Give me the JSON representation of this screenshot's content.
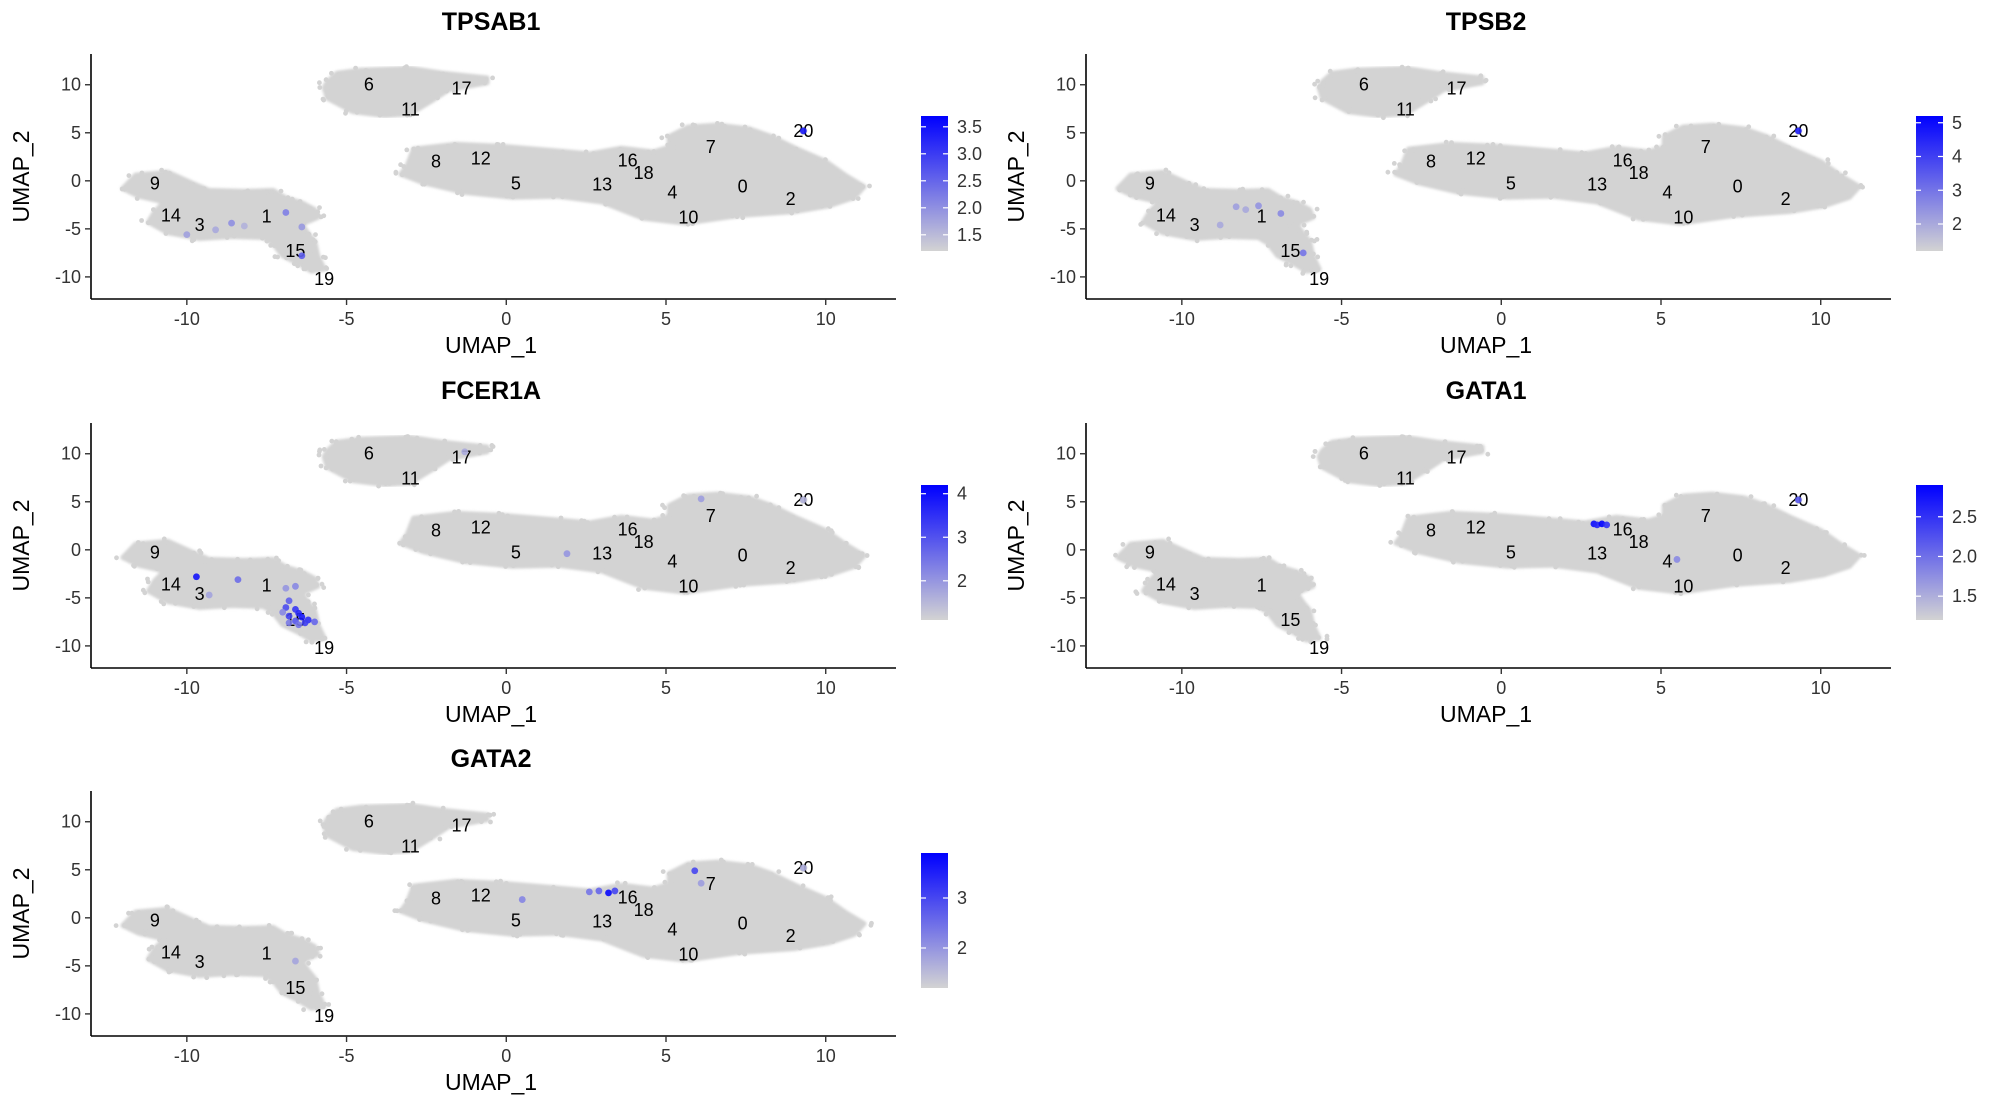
{
  "figure": {
    "background": "#ffffff",
    "point_color": "#d3d3d3",
    "low_color": "#d3d3d3",
    "high_color": "#0000ff"
  },
  "chart_data": [
    {
      "type": "scatter",
      "title": "TPSAB1",
      "xlabel": "UMAP_1",
      "ylabel": "UMAP_2",
      "xlim": [
        -13,
        12.2
      ],
      "ylim": [
        -12.3,
        13.2
      ],
      "xticks": [
        -10,
        -5,
        0,
        5,
        10
      ],
      "yticks": [
        10,
        5,
        0,
        -5,
        -10
      ],
      "legend": {
        "position": "right",
        "ticks": [
          3.5,
          3.0,
          2.5,
          2.0,
          1.5
        ],
        "tick_labels": [
          "3.5",
          "3.0",
          "2.5",
          "2.0",
          "1.5"
        ],
        "min": 1.2,
        "max": 3.7
      },
      "expressing_points": [
        {
          "x": -10.0,
          "y": -5.6,
          "v": 1.8
        },
        {
          "x": -9.1,
          "y": -5.1,
          "v": 1.7
        },
        {
          "x": -8.6,
          "y": -4.4,
          "v": 2.0
        },
        {
          "x": -8.2,
          "y": -4.7,
          "v": 1.6
        },
        {
          "x": -6.9,
          "y": -3.3,
          "v": 2.2
        },
        {
          "x": -6.4,
          "y": -4.8,
          "v": 1.9
        },
        {
          "x": -6.4,
          "y": -7.8,
          "v": 2.6
        },
        {
          "x": 9.3,
          "y": 5.2,
          "v": 3.4
        }
      ]
    },
    {
      "type": "scatter",
      "title": "TPSB2",
      "xlabel": "UMAP_1",
      "ylabel": "UMAP_2",
      "xlim": [
        -13,
        12.2
      ],
      "ylim": [
        -12.3,
        13.2
      ],
      "xticks": [
        -10,
        -5,
        0,
        5,
        10
      ],
      "yticks": [
        10,
        5,
        0,
        -5,
        -10
      ],
      "legend": {
        "position": "right",
        "ticks": [
          5,
          4,
          3,
          2
        ],
        "tick_labels": [
          "5",
          "4",
          "3",
          "2"
        ],
        "min": 1.2,
        "max": 5.2
      },
      "expressing_points": [
        {
          "x": -8.3,
          "y": -2.7,
          "v": 2.2
        },
        {
          "x": -8.0,
          "y": -3.0,
          "v": 2.0
        },
        {
          "x": -7.6,
          "y": -2.6,
          "v": 2.4
        },
        {
          "x": -8.8,
          "y": -4.6,
          "v": 2.0
        },
        {
          "x": -6.9,
          "y": -3.4,
          "v": 2.6
        },
        {
          "x": -6.2,
          "y": -7.5,
          "v": 3.0
        },
        {
          "x": 9.3,
          "y": 5.2,
          "v": 4.6
        }
      ]
    },
    {
      "type": "scatter",
      "title": "FCER1A",
      "xlabel": "UMAP_1",
      "ylabel": "UMAP_2",
      "xlim": [
        -13,
        12.2
      ],
      "ylim": [
        -12.3,
        13.2
      ],
      "xticks": [
        -10,
        -5,
        0,
        5,
        10
      ],
      "yticks": [
        10,
        5,
        0,
        -5,
        -10
      ],
      "legend": {
        "position": "right",
        "ticks": [
          4,
          3,
          2
        ],
        "tick_labels": [
          "4",
          "3",
          "2"
        ],
        "min": 1.1,
        "max": 4.2
      },
      "expressing_points": [
        {
          "x": -9.7,
          "y": -2.8,
          "v": 3.9
        },
        {
          "x": -8.4,
          "y": -3.1,
          "v": 2.6
        },
        {
          "x": -9.3,
          "y": -4.7,
          "v": 1.8
        },
        {
          "x": -6.9,
          "y": -4.0,
          "v": 2.0
        },
        {
          "x": -6.6,
          "y": -3.8,
          "v": 2.2
        },
        {
          "x": -6.8,
          "y": -5.3,
          "v": 2.8
        },
        {
          "x": -6.9,
          "y": -6.0,
          "v": 3.1
        },
        {
          "x": -6.6,
          "y": -6.2,
          "v": 3.4
        },
        {
          "x": -6.5,
          "y": -6.6,
          "v": 3.6
        },
        {
          "x": -6.8,
          "y": -6.9,
          "v": 3.2
        },
        {
          "x": -6.4,
          "y": -7.0,
          "v": 3.8
        },
        {
          "x": -6.2,
          "y": -7.3,
          "v": 3.5
        },
        {
          "x": -6.6,
          "y": -7.4,
          "v": 2.9
        },
        {
          "x": -6.3,
          "y": -7.6,
          "v": 3.3
        },
        {
          "x": -6.0,
          "y": -7.5,
          "v": 2.7
        },
        {
          "x": -6.5,
          "y": -7.8,
          "v": 2.5
        },
        {
          "x": -6.8,
          "y": -7.6,
          "v": 2.4
        },
        {
          "x": -7.0,
          "y": -6.5,
          "v": 2.2
        },
        {
          "x": 1.9,
          "y": -0.4,
          "v": 2.0
        },
        {
          "x": 6.1,
          "y": 5.3,
          "v": 1.9
        },
        {
          "x": 9.3,
          "y": 5.2,
          "v": 1.6
        },
        {
          "x": -1.3,
          "y": 10.2,
          "v": 1.7
        }
      ]
    },
    {
      "type": "scatter",
      "title": "GATA1",
      "xlabel": "UMAP_1",
      "ylabel": "UMAP_2",
      "xlim": [
        -13,
        12.2
      ],
      "ylim": [
        -12.3,
        13.2
      ],
      "xticks": [
        -10,
        -5,
        0,
        5,
        10
      ],
      "yticks": [
        10,
        5,
        0,
        -5,
        -10
      ],
      "legend": {
        "position": "right",
        "ticks": [
          2.5,
          2.0,
          1.5
        ],
        "tick_labels": [
          "2.5",
          "2.0",
          "1.5"
        ],
        "min": 1.2,
        "max": 2.9
      },
      "expressing_points": [
        {
          "x": 2.9,
          "y": 2.7,
          "v": 2.8
        },
        {
          "x": 3.0,
          "y": 2.6,
          "v": 2.6
        },
        {
          "x": 3.15,
          "y": 2.7,
          "v": 2.9
        },
        {
          "x": 3.3,
          "y": 2.6,
          "v": 2.5
        },
        {
          "x": 5.5,
          "y": -1.0,
          "v": 1.8
        },
        {
          "x": 9.3,
          "y": 5.2,
          "v": 2.2
        }
      ]
    },
    {
      "type": "scatter",
      "title": "GATA2",
      "xlabel": "UMAP_1",
      "ylabel": "UMAP_2",
      "xlim": [
        -13,
        12.2
      ],
      "ylim": [
        -12.3,
        13.2
      ],
      "xticks": [
        -10,
        -5,
        0,
        5,
        10
      ],
      "yticks": [
        10,
        5,
        0,
        -5,
        -10
      ],
      "legend": {
        "position": "right",
        "ticks": [
          3,
          2
        ],
        "tick_labels": [
          "3",
          "2"
        ],
        "min": 1.2,
        "max": 3.9
      },
      "expressing_points": [
        {
          "x": 0.5,
          "y": 1.9,
          "v": 2.2
        },
        {
          "x": 2.6,
          "y": 2.7,
          "v": 2.4
        },
        {
          "x": 2.9,
          "y": 2.8,
          "v": 2.6
        },
        {
          "x": 3.2,
          "y": 2.6,
          "v": 3.8
        },
        {
          "x": 3.4,
          "y": 2.8,
          "v": 3.0
        },
        {
          "x": 5.9,
          "y": 4.9,
          "v": 3.0
        },
        {
          "x": 6.1,
          "y": 3.6,
          "v": 1.9
        },
        {
          "x": -6.6,
          "y": -4.5,
          "v": 1.8
        },
        {
          "x": 9.3,
          "y": 5.2,
          "v": 1.7
        }
      ]
    }
  ],
  "clusters": [
    {
      "label": "0",
      "x": 7.4,
      "y": -0.6
    },
    {
      "label": "1",
      "x": -7.5,
      "y": -3.7
    },
    {
      "label": "2",
      "x": 8.9,
      "y": -1.9
    },
    {
      "label": "3",
      "x": -9.6,
      "y": -4.6
    },
    {
      "label": "4",
      "x": 5.2,
      "y": -1.2
    },
    {
      "label": "5",
      "x": 0.3,
      "y": -0.3
    },
    {
      "label": "6",
      "x": -4.3,
      "y": 10.0
    },
    {
      "label": "7",
      "x": 6.4,
      "y": 3.5
    },
    {
      "label": "8",
      "x": -2.2,
      "y": 2.0
    },
    {
      "label": "9",
      "x": -11.0,
      "y": -0.3
    },
    {
      "label": "10",
      "x": 5.7,
      "y": -3.8
    },
    {
      "label": "11",
      "x": -3.0,
      "y": 7.4
    },
    {
      "label": "12",
      "x": -0.8,
      "y": 2.3
    },
    {
      "label": "13",
      "x": 3.0,
      "y": -0.4
    },
    {
      "label": "14",
      "x": -10.5,
      "y": -3.6
    },
    {
      "label": "15",
      "x": -6.6,
      "y": -7.3
    },
    {
      "label": "16",
      "x": 3.8,
      "y": 2.1
    },
    {
      "label": "17",
      "x": -1.4,
      "y": 9.6
    },
    {
      "label": "18",
      "x": 4.3,
      "y": 0.8
    },
    {
      "label": "19",
      "x": -5.7,
      "y": -10.2
    },
    {
      "label": "20",
      "x": 9.3,
      "y": 5.2
    }
  ]
}
